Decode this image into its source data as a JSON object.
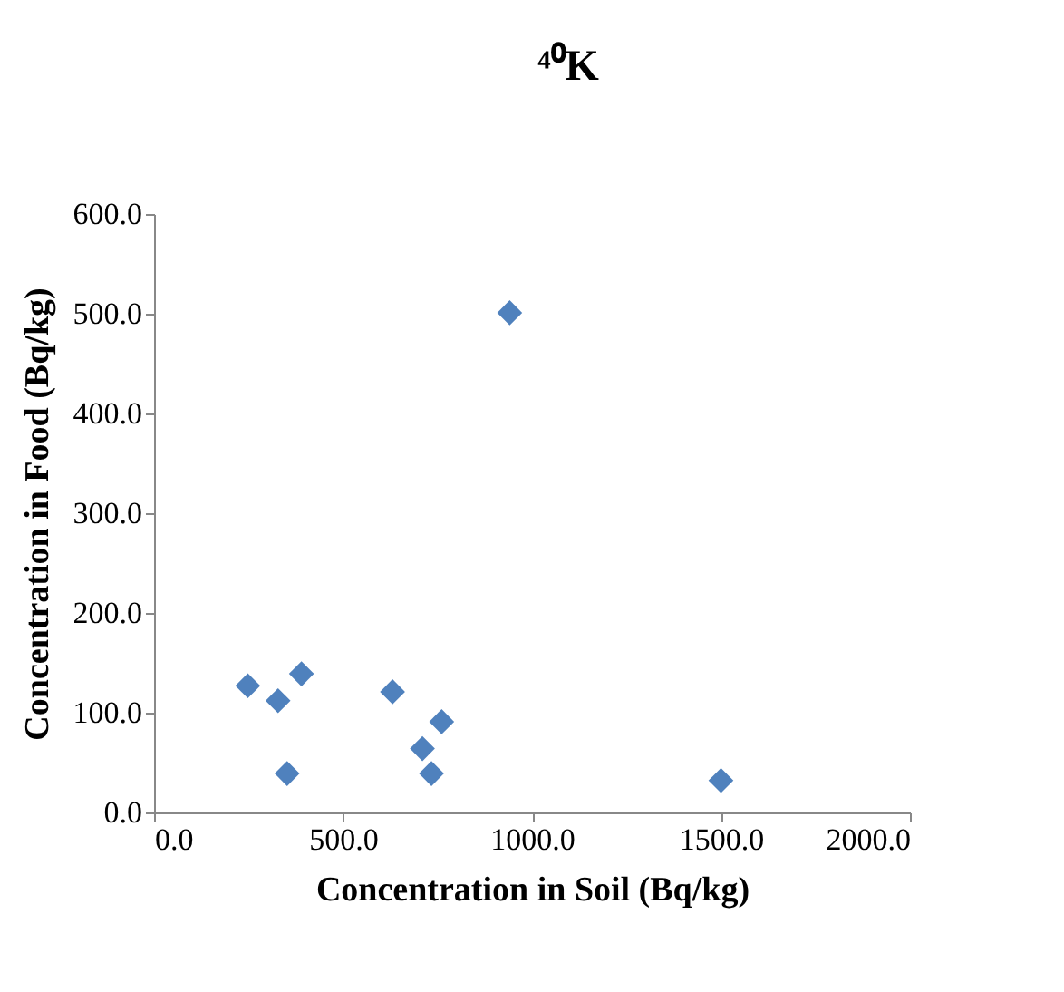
{
  "chart_data": {
    "type": "scatter",
    "title": "⁴⁰K",
    "xlabel": "Concentration in Soil (Bq/kg)",
    "ylabel": "Concentration in Food (Bq/kg)",
    "x": [
      248,
      328,
      390,
      352,
      631,
      761,
      710,
      734,
      941,
      1500
    ],
    "values": [
      127,
      112,
      139,
      39,
      121,
      91,
      64,
      39,
      501,
      32
    ],
    "color": "#4f81bd",
    "marker": "diamond",
    "xlim": [
      0,
      2000
    ],
    "xticks": [
      {
        "value": 0,
        "label": "0.0"
      },
      {
        "value": 500,
        "label": "500.0"
      },
      {
        "value": 1000,
        "label": "1000.0"
      },
      {
        "value": 1500,
        "label": "1500.0"
      },
      {
        "value": 2000,
        "label": "2000.0"
      }
    ],
    "ylim": [
      0,
      600
    ],
    "yticks": [
      {
        "value": 0,
        "label": "0.0"
      },
      {
        "value": 100,
        "label": "100.0"
      },
      {
        "value": 200,
        "label": "200.0"
      },
      {
        "value": 300,
        "label": "300.0"
      },
      {
        "value": 400,
        "label": "400.0"
      },
      {
        "value": 500,
        "label": "500.0"
      },
      {
        "value": 600,
        "label": "600.0"
      }
    ],
    "grid": false
  }
}
